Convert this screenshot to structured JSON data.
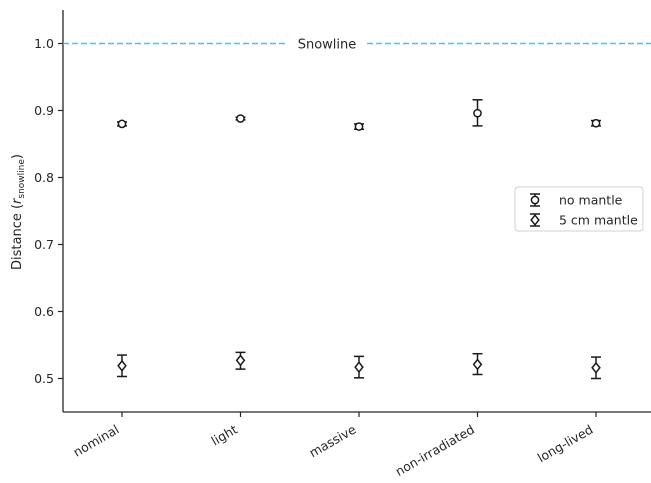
{
  "chart_data": {
    "type": "scatter",
    "title": "",
    "ylabel": "Distance (r_snowline)",
    "ylabel_main": "Distance (",
    "ylabel_var": "r",
    "ylabel_sub": "snowline",
    "ylabel_close": ")",
    "xlabel": "",
    "categories": [
      "nominal",
      "light",
      "massive",
      "non-irradiated",
      "long-lived"
    ],
    "ylim": [
      0.45,
      1.05
    ],
    "yticks": [
      0.5,
      0.6,
      0.7,
      0.8,
      0.9,
      1.0
    ],
    "ytick_labels": [
      "0.5",
      "0.6",
      "0.7",
      "0.8",
      "0.9",
      "1.0"
    ],
    "grid": false,
    "legend_position": "center-right",
    "reference_line": {
      "y": 1.0,
      "label": "Snowline",
      "color": "#5bc0de",
      "style": "dashed"
    },
    "series": [
      {
        "name": "no mantle",
        "marker": "circle",
        "values": [
          0.88,
          0.888,
          0.876,
          0.896,
          0.881
        ],
        "err_low": [
          0.877,
          0.886,
          0.872,
          0.877,
          0.877
        ],
        "err_high": [
          0.883,
          0.89,
          0.88,
          0.916,
          0.885
        ]
      },
      {
        "name": "5 cm mantle",
        "marker": "diamond",
        "values": [
          0.519,
          0.527,
          0.517,
          0.521,
          0.516
        ],
        "err_low": [
          0.503,
          0.514,
          0.501,
          0.506,
          0.5
        ],
        "err_high": [
          0.535,
          0.539,
          0.533,
          0.537,
          0.532
        ]
      }
    ],
    "colors": {
      "series": "#1a1a1a",
      "axis": "#262626"
    }
  }
}
